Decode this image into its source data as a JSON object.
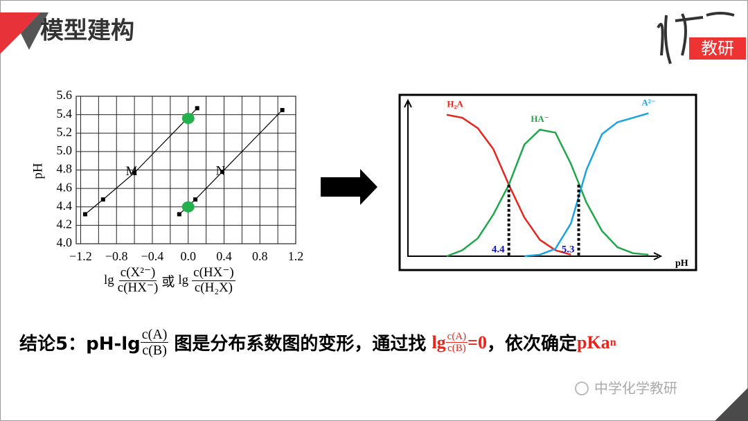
{
  "header": {
    "title": "模型建构"
  },
  "logo": {
    "text": "教研"
  },
  "chart_data": [
    {
      "type": "scatter",
      "ylabel": "pH",
      "x_label": {
        "lg1": "lg",
        "num1": "c(X²⁻)",
        "den1": "c(HX⁻)",
        "or": "或",
        "lg2": "lg",
        "num2": "c(HX⁻)",
        "den2": "c(H₂X)"
      },
      "xlim": [
        -1.25,
        1.2
      ],
      "ylim": [
        4.0,
        5.6
      ],
      "xticks": [
        {
          "value": -1.2,
          "label": "−1.2"
        },
        {
          "value": -0.8,
          "label": "−0.8"
        },
        {
          "value": -0.4,
          "label": "−0.4"
        },
        {
          "value": 0,
          "label": "0.0"
        },
        {
          "value": 0.4,
          "label": "0.4"
        },
        {
          "value": 0.8,
          "label": "0.8"
        },
        {
          "value": 1.2,
          "label": "1.2"
        }
      ],
      "x_minor_ticks": [
        -1.0,
        -0.6,
        -0.2,
        0.2,
        0.6,
        1.0
      ],
      "yticks": [
        {
          "value": 4.0,
          "label": "4.0"
        },
        {
          "value": 4.2,
          "label": "4.2"
        },
        {
          "value": 4.4,
          "label": "4.4"
        },
        {
          "value": 4.6,
          "label": "4.6"
        },
        {
          "value": 4.8,
          "label": "4.8"
        },
        {
          "value": 5.0,
          "label": "5.0"
        },
        {
          "value": 5.2,
          "label": "5.2"
        },
        {
          "value": 5.4,
          "label": "5.4"
        },
        {
          "value": 5.6,
          "label": "5.6"
        }
      ],
      "grid": true,
      "series": [
        {
          "name": "M",
          "color": "#000000",
          "x": [
            -1.15,
            -0.95,
            -0.6,
            0.1
          ],
          "values": [
            4.32,
            4.48,
            4.77,
            5.47
          ]
        },
        {
          "name": "N",
          "color": "#000000",
          "x": [
            -0.1,
            0.08,
            0.38,
            1.05
          ],
          "values": [
            4.32,
            4.48,
            4.78,
            5.45
          ]
        }
      ],
      "highlight_points": {
        "color": "#22b14c",
        "x": [
          0,
          0
        ],
        "values": [
          5.36,
          4.4
        ]
      }
    },
    {
      "type": "line",
      "xlabel": "pH",
      "xlim": [
        3.1,
        6.25
      ],
      "ylim": [
        0,
        1
      ],
      "x": [
        3.6,
        3.8,
        4.0,
        4.2,
        4.4,
        4.6,
        4.8,
        5.0,
        5.2,
        5.4,
        5.6,
        5.8,
        6.0,
        6.2
      ],
      "series": [
        {
          "name": "H₂A",
          "color": "#e8241c",
          "values": [
            0.95,
            0.93,
            0.86,
            0.72,
            0.48,
            0.26,
            0.11,
            0.04,
            0.01,
            null,
            null,
            null,
            null,
            null
          ]
        },
        {
          "name": "HA⁻",
          "color": "#1fa64a",
          "values": [
            0.0,
            0.04,
            0.12,
            0.28,
            0.48,
            0.75,
            0.85,
            0.83,
            0.62,
            0.36,
            0.17,
            0.06,
            0.02,
            0.01
          ]
        },
        {
          "name": "A²⁻",
          "color": "#1aa3e0",
          "values": [
            null,
            null,
            null,
            null,
            null,
            0.0,
            0.01,
            0.05,
            0.22,
            0.58,
            0.82,
            0.9,
            0.93,
            0.96
          ]
        }
      ],
      "marked_points": [
        {
          "x": 4.4,
          "y": 0.48
        },
        {
          "x": 5.3,
          "y": 0.48
        }
      ],
      "marked_color": "#1010c8"
    }
  ],
  "conclusion": {
    "prefix": "结论5：pH-lg",
    "frac1_num": "c(A)",
    "frac1_den": "c(B)",
    "middle": "图是分布系数图的变形，通过找",
    "red_lg": "lg",
    "frac2_num": "c(A)",
    "frac2_den": "c(B)",
    "red_eq": "=0",
    "comma": "，依次确定",
    "red_pka": "pKa",
    "red_sub": "n"
  },
  "watermark": "中学化学教研"
}
